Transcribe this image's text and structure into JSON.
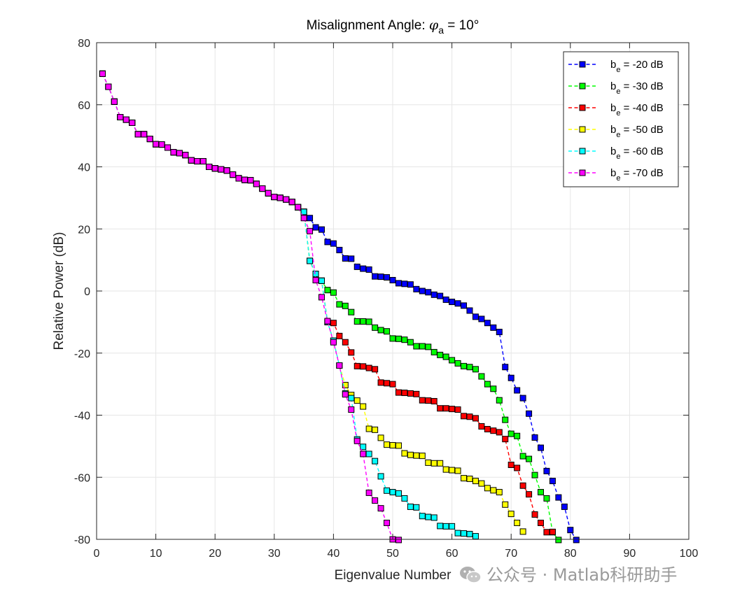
{
  "chart_data": {
    "type": "line",
    "title_main": "Misalignment Angle: ",
    "title_symbol": "φ",
    "title_sub": "a",
    "title_tail": " = 10°",
    "xlabel": "Eigenvalue Number",
    "ylabel": "Relative Power (dB)",
    "xlim": [
      0,
      100
    ],
    "ylim": [
      -80,
      80
    ],
    "xticks": [
      0,
      10,
      20,
      30,
      40,
      50,
      60,
      70,
      80,
      90,
      100
    ],
    "yticks": [
      -80,
      -60,
      -40,
      -20,
      0,
      20,
      40,
      60,
      80
    ],
    "grid": true,
    "legend_position": "top-right",
    "series": [
      {
        "name_base": "b",
        "name_sub": "e",
        "name_tail": " = -20 dB",
        "color": "#0000ff",
        "y": [
          70,
          65.8,
          61,
          56,
          55.2,
          54.2,
          50.5,
          50.5,
          49,
          47.3,
          47.2,
          46.2,
          44.7,
          44.4,
          43.8,
          42.1,
          41.8,
          41.8,
          40,
          39.5,
          39.2,
          38.8,
          37.5,
          36.3,
          35.8,
          35.7,
          34.5,
          33,
          31.5,
          30.3,
          30,
          29.5,
          28.7,
          27,
          25.5,
          23.5,
          20.5,
          19.8,
          15.8,
          15.3,
          13.2,
          10.5,
          10.4,
          7.8,
          7.2,
          6.9,
          4.7,
          4.6,
          4.4,
          3.5,
          2.5,
          2.3,
          2.1,
          0.6,
          0,
          -0.4,
          -1.2,
          -1.6,
          -2.8,
          -3.5,
          -4,
          -4.7,
          -6.3,
          -8.3,
          -9,
          -10.3,
          -11.8,
          -13.2,
          -24.5,
          -28,
          -32,
          -34.5,
          -39.5,
          -47.2,
          -50.5,
          -58,
          -61.2,
          -66.5,
          -69.5,
          -77,
          -80.2
        ]
      },
      {
        "name_base": "b",
        "name_sub": "e",
        "name_tail": " = -30 dB",
        "color": "#00ff00",
        "y": [
          70,
          65.8,
          61,
          56,
          55.2,
          54.2,
          50.5,
          50.5,
          49,
          47.3,
          47.2,
          46.2,
          44.7,
          44.4,
          43.8,
          42.1,
          41.8,
          41.8,
          40,
          39.5,
          39.2,
          38.8,
          37.5,
          36.3,
          35.8,
          35.7,
          34.5,
          33,
          31.5,
          30.3,
          30,
          29.5,
          28.7,
          27,
          25.5,
          9.7,
          5.5,
          3.3,
          0.3,
          -0.5,
          -4.3,
          -4.8,
          -6.8,
          -9.8,
          -9.8,
          -9.9,
          -11.8,
          -12.6,
          -13,
          -15.3,
          -15.4,
          -15.7,
          -16.5,
          -17.8,
          -17.8,
          -18,
          -19.7,
          -20.6,
          -21.2,
          -22.3,
          -23.3,
          -24.2,
          -24.5,
          -25.2,
          -27.5,
          -30,
          -31.5,
          -35.2,
          -41.5,
          -46,
          -46.7,
          -53.2,
          -54.1,
          -59.3,
          -64.8,
          -66.8,
          -77.7,
          -80.2
        ]
      },
      {
        "name_base": "b",
        "name_sub": "e",
        "name_tail": " = -40 dB",
        "color": "#ff0000",
        "y": [
          70,
          65.8,
          61,
          56,
          55.2,
          54.2,
          50.5,
          50.5,
          49,
          47.3,
          47.2,
          46.2,
          44.7,
          44.4,
          43.8,
          42.1,
          41.8,
          41.8,
          40,
          39.5,
          39.2,
          38.8,
          37.5,
          36.3,
          35.8,
          35.7,
          34.5,
          33,
          31.5,
          30.3,
          30,
          29.5,
          28.7,
          27,
          25.5,
          9.7,
          5.5,
          3.3,
          -10,
          -10.3,
          -14.5,
          -16.5,
          -19.8,
          -24.2,
          -24.3,
          -24.8,
          -25.2,
          -29.5,
          -29.7,
          -30,
          -32.7,
          -32.8,
          -33,
          -33.2,
          -35.2,
          -35.3,
          -35.5,
          -37.8,
          -37.8,
          -38,
          -38.2,
          -40.3,
          -40.5,
          -41,
          -43.6,
          -44.5,
          -45,
          -45.5,
          -47.7,
          -56,
          -57,
          -62.7,
          -65.5,
          -72,
          -74.7,
          -77.7,
          -77.6
        ]
      },
      {
        "name_base": "b",
        "name_sub": "e",
        "name_tail": " = -50 dB",
        "color": "#ffff00",
        "y": [
          70,
          65.8,
          61,
          56,
          55.2,
          54.2,
          50.5,
          50.5,
          49,
          47.3,
          47.2,
          46.2,
          44.7,
          44.4,
          43.8,
          42.1,
          41.8,
          41.8,
          40,
          39.5,
          39.2,
          38.8,
          37.5,
          36.3,
          35.8,
          35.7,
          34.5,
          33,
          31.5,
          30.3,
          30,
          29.5,
          28.7,
          27,
          25.5,
          9.7,
          5.5,
          3.3,
          -10,
          -16,
          -24,
          -30.3,
          -33.5,
          -35.3,
          -37.2,
          -44.4,
          -44.7,
          -47.3,
          -49.5,
          -49.7,
          -49.8,
          -52.3,
          -52.8,
          -53,
          -53.1,
          -55.3,
          -55.5,
          -55.5,
          -57.5,
          -57.7,
          -57.9,
          -60.3,
          -60.5,
          -61.2,
          -62,
          -63.5,
          -64.2,
          -64.8,
          -68.8,
          -71.8,
          -74.7,
          -77.5
        ]
      },
      {
        "name_base": "b",
        "name_sub": "e",
        "name_tail": " = -60 dB",
        "color": "#00ffff",
        "y": [
          70,
          65.8,
          61,
          56,
          55.2,
          54.2,
          50.5,
          50.5,
          49,
          47.3,
          47.2,
          46.2,
          44.7,
          44.4,
          43.8,
          42.1,
          41.8,
          41.8,
          40,
          39.5,
          39.2,
          38.8,
          37.5,
          36.3,
          35.8,
          35.7,
          34.5,
          33,
          31.5,
          30.3,
          30,
          29.5,
          28.7,
          27,
          25.5,
          9.7,
          5.5,
          3.3,
          -10,
          -16,
          -24,
          -33,
          -34.5,
          -47.8,
          -50.2,
          -52.5,
          -54.8,
          -59.7,
          -64.3,
          -64.8,
          -65.2,
          -66.8,
          -69.5,
          -69.7,
          -72.5,
          -72.8,
          -73,
          -75.7,
          -75.8,
          -75.8,
          -78,
          -78.1,
          -78.3,
          -79
        ]
      },
      {
        "name_base": "b",
        "name_sub": "e",
        "name_tail": " = -70 dB",
        "color": "#ff00ff",
        "y": [
          70,
          65.8,
          61,
          56,
          55.2,
          54.2,
          50.5,
          50.5,
          49,
          47.3,
          47.2,
          46.2,
          44.7,
          44.4,
          43.8,
          42.1,
          41.8,
          41.8,
          40,
          39.5,
          39.2,
          38.8,
          37.5,
          36.3,
          35.8,
          35.7,
          34.5,
          33,
          31.5,
          30.3,
          30,
          29.5,
          28.7,
          27,
          23.5,
          19.3,
          3.5,
          -2,
          -9.7,
          -16.5,
          -24,
          -33.3,
          -38.2,
          -48.3,
          -52.5,
          -65,
          -67.5,
          -70,
          -74.7,
          -80,
          -80.2
        ]
      }
    ]
  },
  "watermark": {
    "text": "公众号 · Matlab科研助手"
  }
}
